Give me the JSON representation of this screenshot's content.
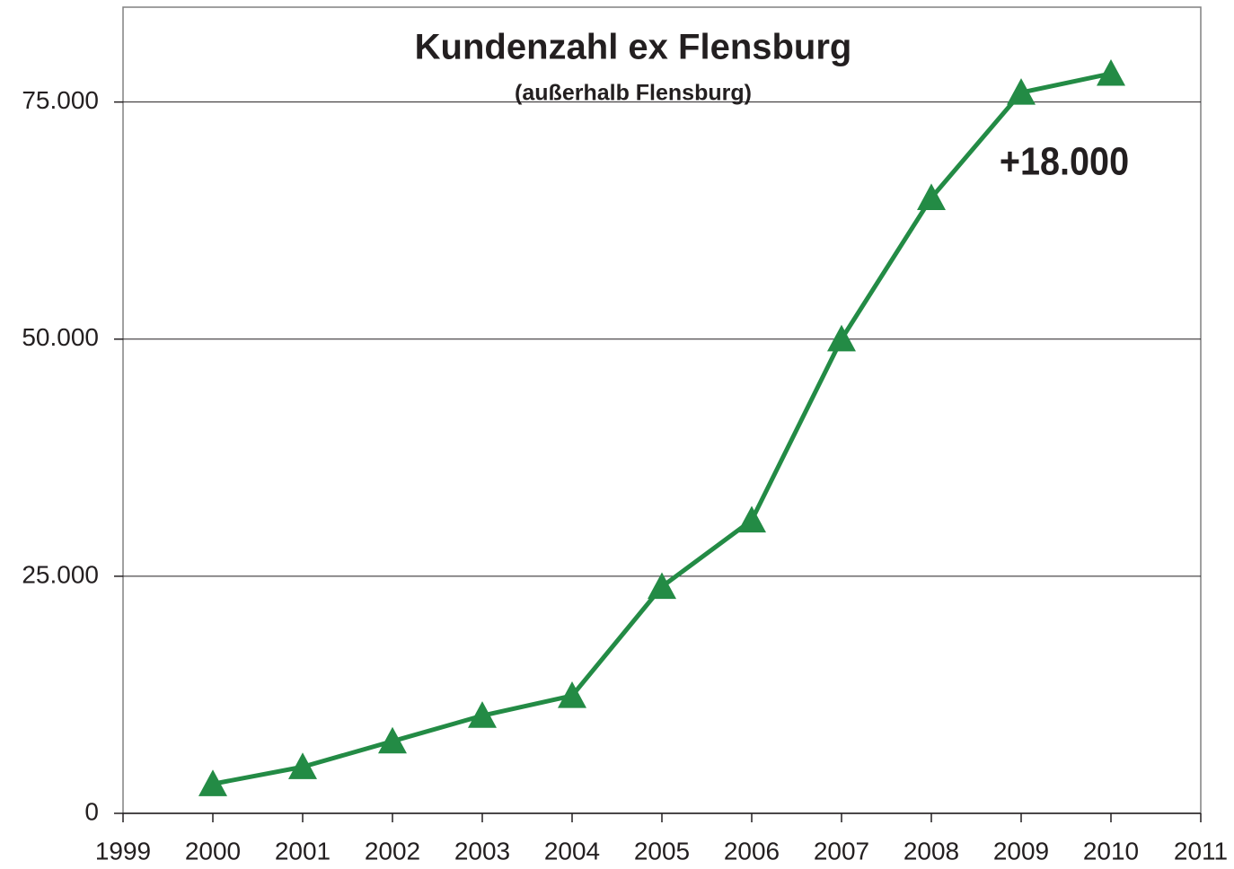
{
  "chart_data": {
    "type": "line",
    "title": "Kundenzahl ex Flensburg",
    "subtitle": "(außerhalb Flensburg)",
    "annotation": "+18.000",
    "x": [
      2000,
      2001,
      2002,
      2003,
      2004,
      2005,
      2006,
      2007,
      2008,
      2009,
      2010
    ],
    "values": [
      3100,
      4900,
      7600,
      10300,
      12400,
      23900,
      30900,
      50000,
      64900,
      76000,
      78000
    ],
    "color": "#238b45",
    "xlim": [
      1999,
      2011
    ],
    "xticks": [
      1999,
      2000,
      2001,
      2002,
      2003,
      2004,
      2005,
      2006,
      2007,
      2008,
      2009,
      2010,
      2011
    ],
    "ylim": [
      0,
      85000
    ],
    "yticks": [
      0,
      {
        "value": 25000,
        "label": "25.000"
      },
      {
        "value": 50000,
        "label": "50.000"
      },
      {
        "value": 75000,
        "label": "75.000"
      }
    ],
    "grid": true,
    "marker": "triangle"
  }
}
